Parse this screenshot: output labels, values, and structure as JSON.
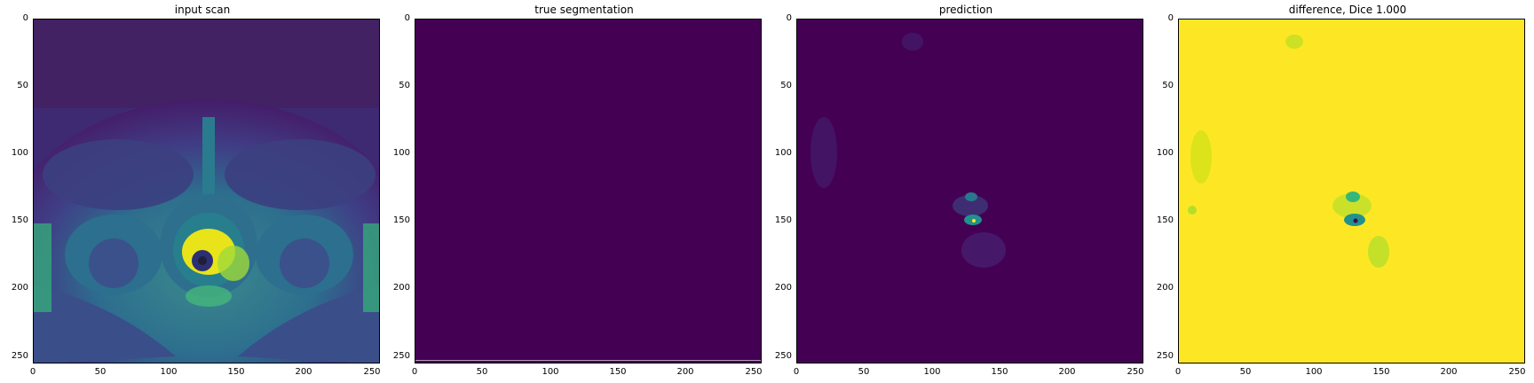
{
  "panels": [
    {
      "title": "input scan"
    },
    {
      "title": "true segmentation"
    },
    {
      "title": "prediction"
    },
    {
      "title": "difference, Dice 1.000"
    }
  ],
  "axes": {
    "xticks": [
      "0",
      "50",
      "100",
      "150",
      "200",
      "250"
    ],
    "yticks": [
      "0",
      "50",
      "100",
      "150",
      "200",
      "250"
    ]
  },
  "colors": {
    "viridis_dark": "#440154",
    "viridis_teal": "#21918c",
    "viridis_green": "#5ec962",
    "viridis_yellow": "#fde725"
  }
}
